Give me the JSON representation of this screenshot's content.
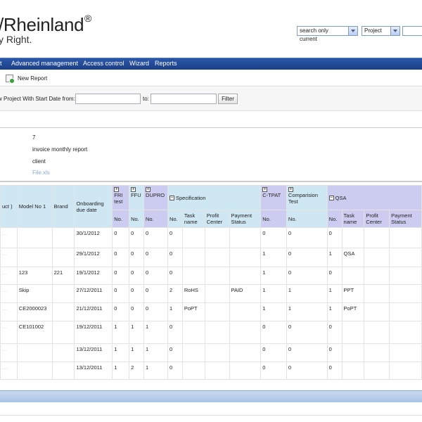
{
  "header": {
    "logo_main": "/Rheinland",
    "logo_reg": "®",
    "logo_tagline": "y Right.",
    "search_scope": "search only current",
    "search_type": "Project"
  },
  "nav": {
    "items": [
      {
        "label": "t"
      },
      {
        "label": "Advanced management"
      },
      {
        "label": "Access control"
      },
      {
        "label": "Wizard"
      },
      {
        "label": "Reports"
      }
    ]
  },
  "toolbar": {
    "new_report": "New Report"
  },
  "filter": {
    "label": "w Project With Start Date from:",
    "to_label": "to:",
    "button": "Filter",
    "from_value": "",
    "to_value": ""
  },
  "info": {
    "count": "7",
    "report_name": "invoice monthly report",
    "type": "client",
    "link": "File.xls"
  },
  "table": {
    "headers": {
      "product": "uct\n)",
      "model": "Model No 1",
      "brand": "Brand",
      "onboarding": "Onboarding due date",
      "fri": "FRI test",
      "ffu": "FFU",
      "dupro": "DUPRO",
      "specification": "Specification",
      "ctpat": "C-TPAT",
      "comparision": "Comparision Test",
      "qsa": "QSA",
      "no": "No.",
      "task_name": "Task name",
      "profit_center": "Profit Center",
      "payment_status": "Payment Status"
    },
    "expand_plus": "+",
    "expand_minus": "−",
    "rows": [
      {
        "product": "…",
        "model": "",
        "brand": "",
        "due": "30/1/2012",
        "fri": "0",
        "ffu": "0",
        "dupro": "0",
        "spec_no": "0",
        "spec_task": "",
        "spec_pc": "",
        "spec_pay": "",
        "ctpat": "0",
        "comp": "0",
        "qsa_no": "0",
        "qsa_task": ""
      },
      {
        "product": "…",
        "model": "",
        "brand": "",
        "due": "29/1/2012",
        "fri": "0",
        "ffu": "0",
        "dupro": "0",
        "spec_no": "0",
        "spec_task": "",
        "spec_pc": "",
        "spec_pay": "",
        "ctpat": "1",
        "comp": "0",
        "qsa_no": "1",
        "qsa_task": "QSA"
      },
      {
        "product": "…",
        "model": "123",
        "brand": "221",
        "due": "19/1/2012",
        "fri": "0",
        "ffu": "0",
        "dupro": "0",
        "spec_no": "0",
        "spec_task": "",
        "spec_pc": "",
        "spec_pay": "",
        "ctpat": "1",
        "comp": "0",
        "qsa_no": "0",
        "qsa_task": ""
      },
      {
        "product": "…",
        "model": "Skip",
        "brand": "",
        "due": "27/12/2011",
        "fri": "0",
        "ffu": "0",
        "dupro": "0",
        "spec_no": "2",
        "spec_task": "RoHS",
        "spec_pc": "",
        "spec_pay": "PAID",
        "ctpat": "1",
        "comp": "1",
        "qsa_no": "1",
        "qsa_task": "PPT"
      },
      {
        "product": "…",
        "model": "CE2000023",
        "brand": "",
        "due": "21/12/2011",
        "fri": "0",
        "ffu": "0",
        "dupro": "0",
        "spec_no": "1",
        "spec_task": "PoPT",
        "spec_pc": "",
        "spec_pay": "",
        "ctpat": "1",
        "comp": "1",
        "qsa_no": "1",
        "qsa_task": "PoPT"
      },
      {
        "product": "…",
        "model": "CE101002",
        "brand": "",
        "due": "19/12/2011",
        "fri": "1",
        "ffu": "1",
        "dupro": "1",
        "spec_no": "0",
        "spec_task": "",
        "spec_pc": "",
        "spec_pay": "",
        "ctpat": "0",
        "comp": "0",
        "qsa_no": "0",
        "qsa_task": ""
      },
      {
        "product": "…",
        "model": "",
        "brand": "",
        "due": "13/12/2011",
        "fri": "1",
        "ffu": "1",
        "dupro": "1",
        "spec_no": "0",
        "spec_task": "",
        "spec_pc": "",
        "spec_pay": "",
        "ctpat": "0",
        "comp": "0",
        "qsa_no": "0",
        "qsa_task": ""
      },
      {
        "product": "…",
        "model": "",
        "brand": "",
        "due": "13/12/2011",
        "fri": "1",
        "ffu": "2",
        "dupro": "1",
        "spec_no": "0",
        "spec_task": "",
        "spec_pc": "",
        "spec_pay": "",
        "ctpat": "0",
        "comp": "0",
        "qsa_no": "0",
        "qsa_task": ""
      }
    ]
  }
}
